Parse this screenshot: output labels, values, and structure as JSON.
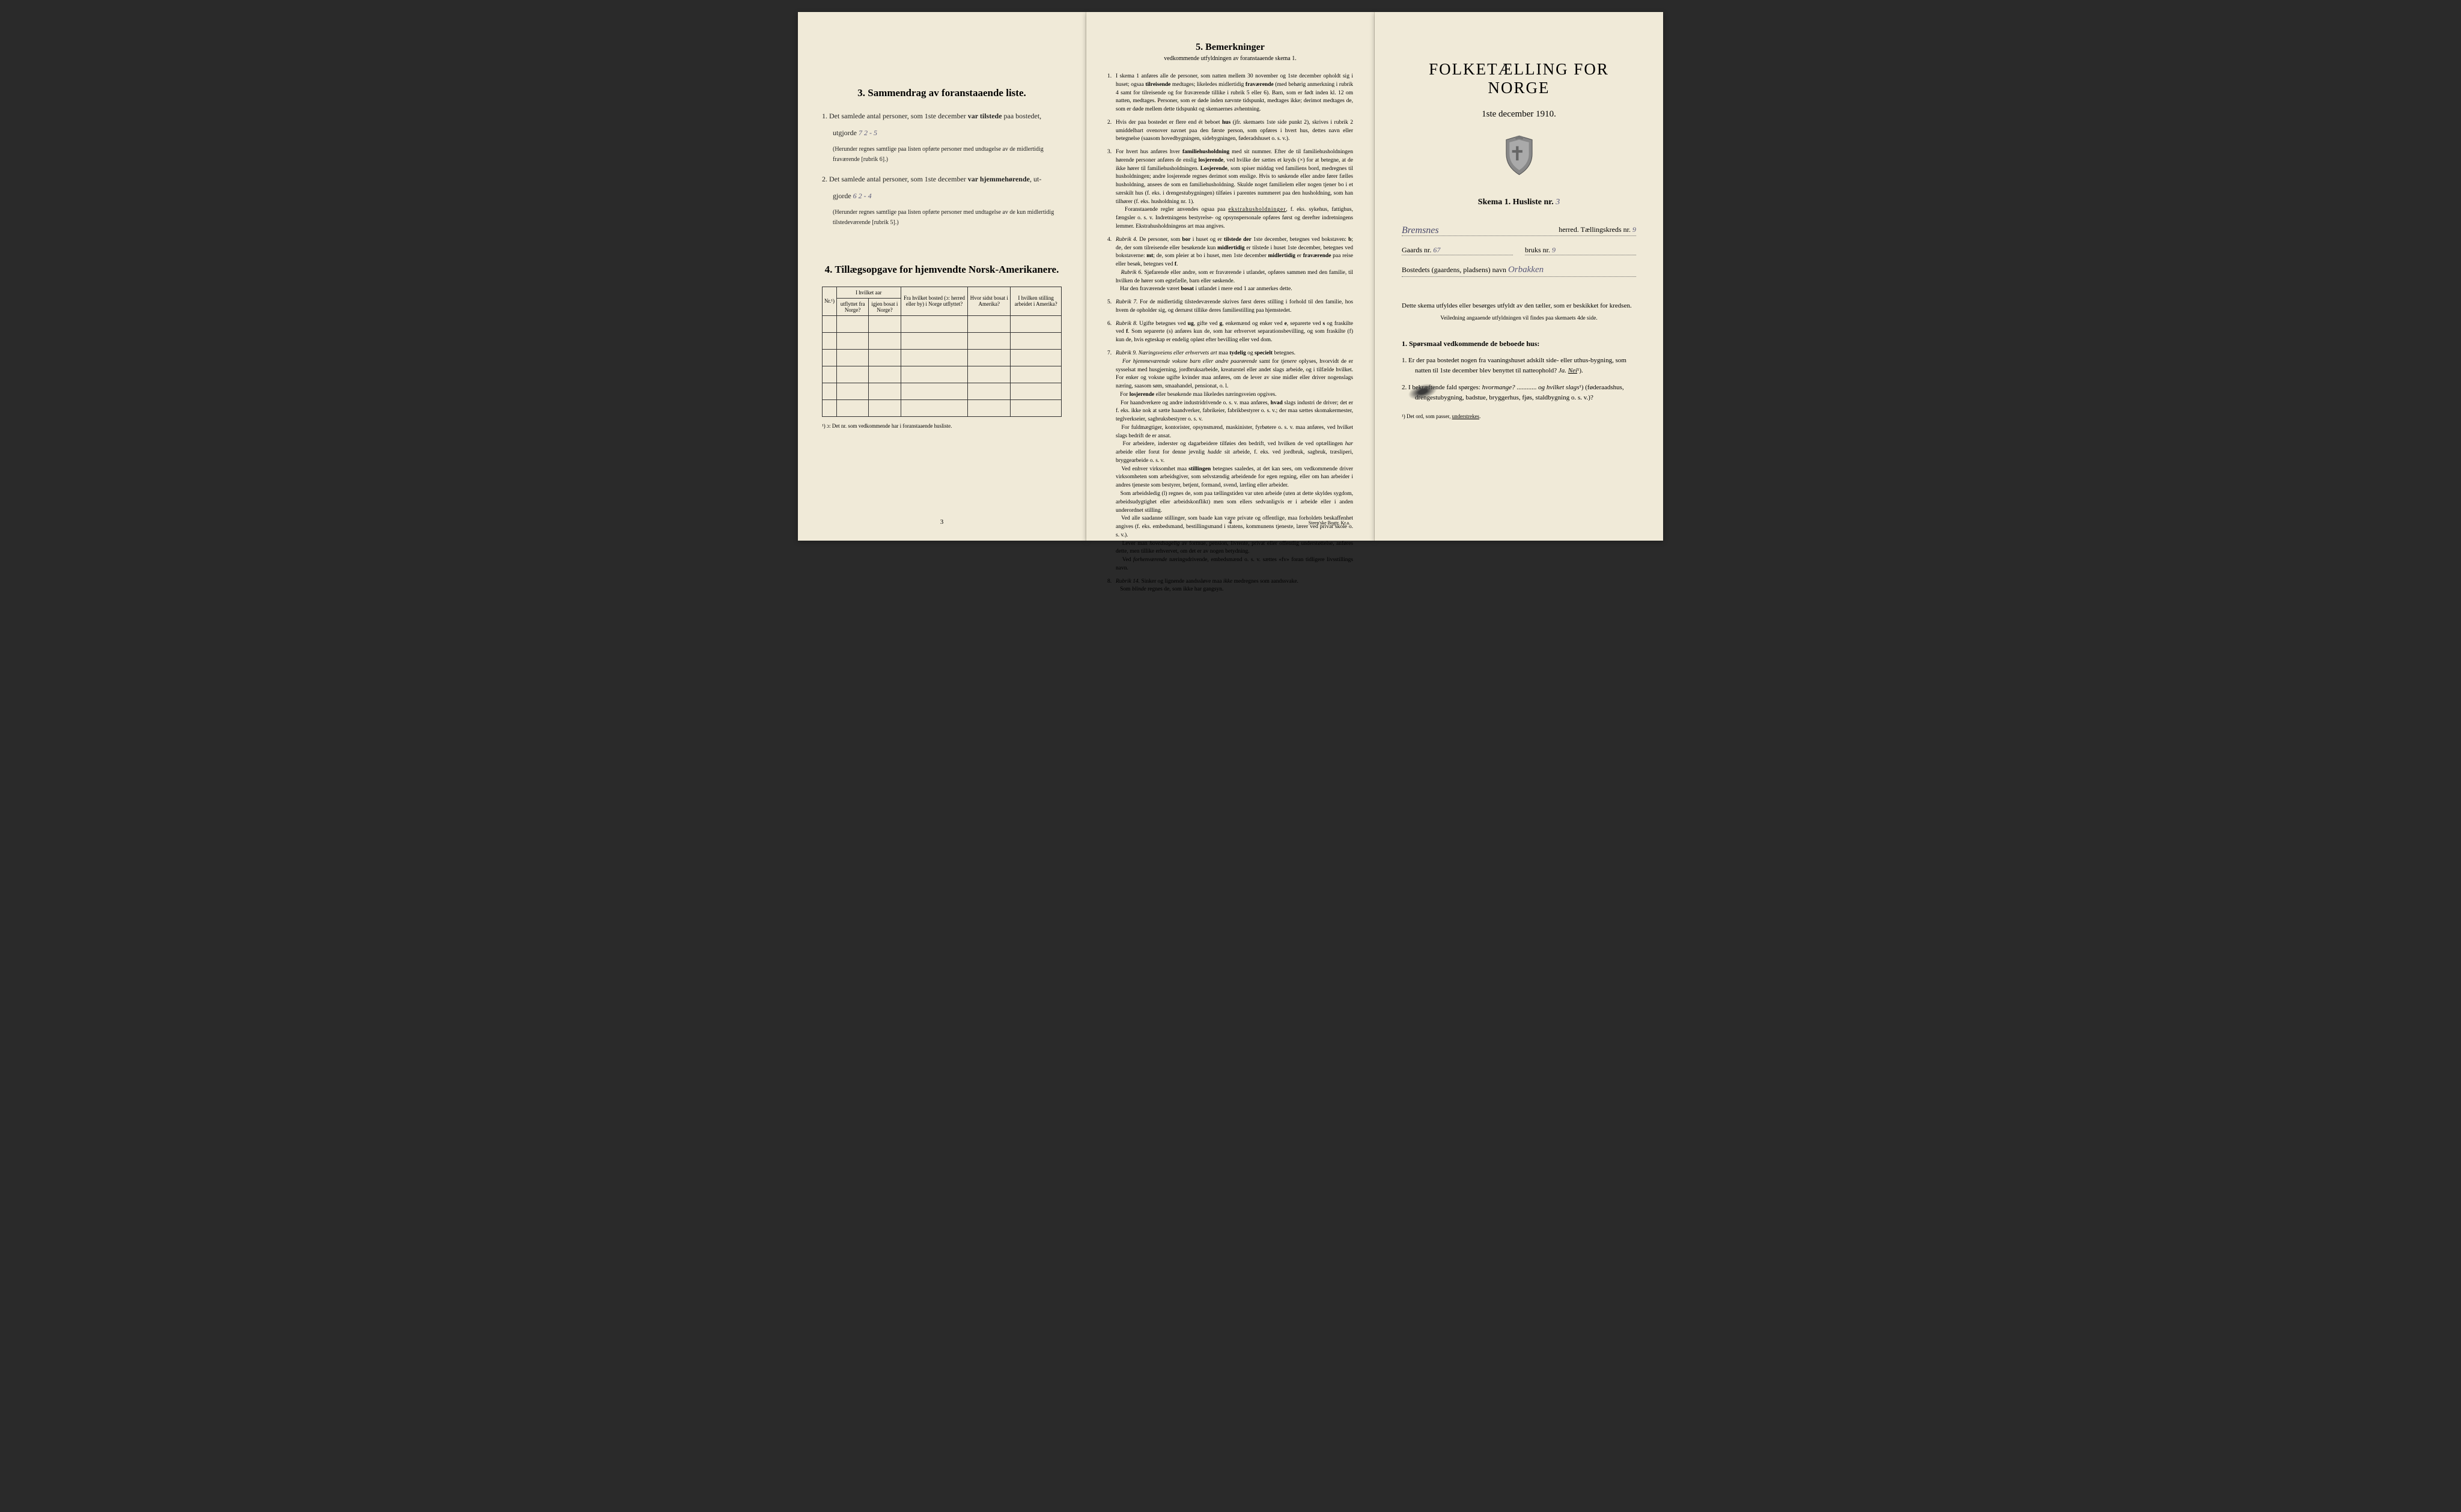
{
  "page1": {
    "section3_title": "3.   Sammendrag av foranstaaende liste.",
    "item1_pre": "1.  Det samlede antal personer, som 1ste december ",
    "item1_bold": "var tilstede",
    "item1_post": " paa bostedet,",
    "item1_line2": "utgjorde",
    "item1_hw": " 7    2 - 5",
    "item1_paren": "(Herunder regnes samtlige paa listen opførte personer med undtagelse av de midlertidig fraværende [rubrik 6].)",
    "item2_pre": "2.  Det samlede antal personer, som 1ste december ",
    "item2_bold": "var hjemmehørende",
    "item2_post": ", ut-",
    "item2_line2": "gjorde",
    "item2_hw": " 6    2 - 4",
    "item2_paren": "(Herunder regnes samtlige paa listen opførte personer med undtagelse av de kun midlertidig tilstedeværende [rubrik 5].)",
    "section4_title": "4.   Tillægsopgave for hjemvendte Norsk-Amerikanere.",
    "th_nr": "Nr.¹)",
    "th_aar": "I hvilket aar",
    "th_utflyttet": "utflyttet fra Norge?",
    "th_igjen": "igjen bosat i Norge?",
    "th_bosted": "Fra hvilket bosted (ɔ: herred eller by) i Norge utflyttet?",
    "th_sidst": "Hvor sidst bosat i Amerika?",
    "th_stilling": "I hvilken stilling arbeidet i Amerika?",
    "footnote": "¹) ɔ: Det nr. som vedkommende har i foranstaaende husliste.",
    "page_num": "3"
  },
  "page2": {
    "title": "5.   Bemerkninger",
    "subtitle": "vedkommende utfyldningen av foranstaaende skema 1.",
    "items": [
      {
        "n": "1.",
        "t": "I skema 1 anføres alle de personer, som natten mellem 30 november og 1ste december opholdt sig i huset; ogsaa <b>tilreisende</b> medtages; likeledes midlertidig <b>fraværende</b> (med behørig anmerkning i rubrik 4 samt for tilreisende og for fraværende tillike i rubrik 5 eller 6). Barn, som er født inden kl. 12 om natten, medtages. Personer, som er døde inden nævnte tidspunkt, medtages ikke; derimot medtages de, som er døde mellem dette tidspunkt og skemaernes avhentning."
      },
      {
        "n": "2.",
        "t": "Hvis der paa bostedet er flere end ét beboet <b>hus</b> (jfr. skemaets 1ste side punkt 2), skrives i rubrik 2 umiddelbart ovenover navnet paa den første person, som opføres i hvert hus, dettes navn eller betegnelse (saasom hovedbygningen, sidebygningen, føderadshuset o. s. v.)."
      },
      {
        "n": "3.",
        "t": "For hvert hus anføres hver <b>familiehusholdning</b> med sit nummer. Efter de til familiehusholdningen hørende personer anføres de enslig <b>losjerende</b>, ved hvilke der sættes et kryds (×) for at betegne, at de ikke hører til familiehusholdningen. <b>Losjerende</b>, som spiser middag ved familiens bord, medregnes til husholdningen; andre losjerende regnes derimot som enslige. Hvis to søskende eller andre fører fælles husholdning, ansees de som en familiehusholdning. Skulde noget familielem eller nogen tjener bo i et særskilt hus (f. eks. i drengestubygningen) tilføies i parentes nummeret paa den husholdning, som han tilhører (f. eks. husholdning nr. 1).<br>&nbsp;&nbsp;&nbsp;Foranstaaende regler anvendes ogsaa paa <span class='underline-old'>ekstrahusholdninger</span>, f. eks. sykehus, fattighus, fængsler o. s. v. Indretningens bestyrelse- og opsynspersonale opføres først og derefter indretningens lemmer. Ekstrahusholdningens art maa angives."
      },
      {
        "n": "4.",
        "t": "<i>Rubrik 4.</i> De personer, som <b>bor</b> i huset og er <b>tilstede der</b> 1ste december, betegnes ved bokstaven: <b>b</b>; de, der som tilreisende eller besøkende kun <b>midlertidig</b> er tilstede i huset 1ste december, betegnes ved bokstaverne: <b>mt</b>; de, som pleier at bo i huset, men 1ste december <b>midlertidig</b> er <b>fraværende</b> paa reise eller besøk, betegnes ved <b>f</b>.<br>&nbsp;&nbsp;&nbsp;<i>Rubrik 6.</i> Sjøfarende eller andre, som er fraværende i utlandet, opføres sammen med den familie, til hvilken de hører som egtefælle, barn eller søskende.<br>&nbsp;&nbsp;&nbsp;Har den fraværende været <b>bosat</b> i utlandet i mere end 1 aar anmerkes dette."
      },
      {
        "n": "5.",
        "t": "<i>Rubrik 7.</i> For de midlertidig tilstedeværende skrives først deres stilling i forhold til den familie, hos hvem de opholder sig, og dernæst tillike deres familiestilling paa hjemstedet."
      },
      {
        "n": "6.",
        "t": "<i>Rubrik 8.</i> Ugifte betegnes ved <b>ug</b>, gifte ved <b>g</b>, enkemænd og enker ved <b>e</b>, separerte ved <b>s</b> og fraskilte ved <b>f</b>. Som separerte (s) anføres kun de, som har erhvervet separationsbevilling, og som fraskilte (f) kun de, hvis egteskap er endelig opløst efter bevilling eller ved dom."
      },
      {
        "n": "7.",
        "t": "<i>Rubrik 9. Næringsveiens eller erhvervets art</i> maa <b>tydelig</b> og <b>specielt</b> betegnes.<br>&nbsp;&nbsp;&nbsp;<i>For hjemmeværende voksne barn eller andre paarørende</i> samt for <i>tjenere</i> oplyses, hvorvidt de er sysselsat med husgjerning, jordbruksarbeide, kreaturstel eller andet slags arbeide, og i tilfælde hvilket. For enker og voksne ugifte kvinder maa anføres, om de lever av sine midler eller driver nogenslags næring, saasom søm, smaahandel, pensionat, o. l.<br>&nbsp;&nbsp;&nbsp;For <b>losjerende</b> eller besøkende maa likeledes næringsveien opgives.<br>&nbsp;&nbsp;&nbsp;For haandverkere og andre industridrivende o. s. v. maa anføres, <b>hvad</b> slags industri de driver; det er f. eks. ikke nok at sætte haandverker, fabrikeier, fabrikbestyrer o. s. v.; der maa sættes skomakermester, teglverkseier, sagbruksbestyrer o. s. v.<br>&nbsp;&nbsp;&nbsp;For fuldmægtiger, kontorister, opsynsmænd, maskinister, fyrbøtere o. s. v. maa anføres, ved hvilket slags bedrift de er ansat.<br>&nbsp;&nbsp;&nbsp;For arbeidere, inderster og dagarbeidere tilføies den bedrift, ved hvilken de ved optællingen <i>har</i> arbeide eller forut for denne jevnlig <i>hadde</i> sit arbeide, f. eks. ved jordbruk, sagbruk, træsliperi, bryggearbeide o. s. v.<br>&nbsp;&nbsp;&nbsp;Ved enhver virksomhet maa <b>stillingen</b> betegnes saaledes, at det kan sees, om vedkommende driver virksomheten som arbeidsgiver, som selvstændig arbeidende for egen regning, eller om han arbeider i andres tjeneste som bestyrer, betjent, formand, svend, lærling eller arbeider.<br>&nbsp;&nbsp;&nbsp;Som arbeidsledig (l) regnes de, som paa tællingstiden var uten arbeide (uten at dette skyldes sygdom, arbeidsudygtighet eller arbeidskonflikt) men som ellers sedvanligvis er i arbeide eller i anden underordnet stilling.<br>&nbsp;&nbsp;&nbsp;Ved alle saadanne stillinger, som baade kan være private og offentlige, maa forholdets beskaffenhet angives (f. eks. embedsmand, bestillingsmand i statens, kommunens tjeneste, lærer ved privat skole o. s. v.).<br>&nbsp;&nbsp;&nbsp;Lever man <i>hovedsagelig</i> av formue, pension, livrente, privat eller offentlig understøttelse, anføres dette, men tillike erhvervet, om det er av nogen betydning.<br>&nbsp;&nbsp;&nbsp;Ved <i>forhenværende</i> næringsdrivende, embedsmænd o. s. v. sættes «fv» foran tidligere livsstillings navn."
      },
      {
        "n": "8.",
        "t": "<i>Rubrik 14.</i> Sinker og lignende aandssløve maa <i>ikke</i> medregnes som aandssvake.<br>&nbsp;&nbsp;&nbsp;Som <i>blinde</i> regnes de, som ikke har gangsyn."
      }
    ],
    "page_num": "4",
    "printer": "Steen'ske Bogtr. Kr.a."
  },
  "page3": {
    "title": "FOLKETÆLLING FOR NORGE",
    "date": "1ste december 1910.",
    "skema_label": "Skema 1.  Husliste nr.",
    "husliste_nr": "3",
    "herred_hw": "Bremsnes",
    "herred_label": "herred.  Tællingskreds nr.",
    "kreds_nr": "9",
    "gaard_label": "Gaards nr.",
    "gaard_nr": "67",
    "bruk_label": "bruks nr.",
    "bruk_nr": "9",
    "bosted_label": "Bostedets (gaardens, pladsens) navn",
    "bosted_hw": "Orbakken",
    "instruction": "Dette skema utfyldes eller besørges utfyldt av den tæller, som er beskikket for kredsen.",
    "instruction_sub": "Veiledning angaaende utfyldningen vil findes paa skemaets 4de side.",
    "q_header": "1. Spørsmaal vedkommende de beboede hus:",
    "q1": "1.   Er der paa bostedet nogen fra vaaningshuset adskilt side- eller uthus-bygning, som natten til 1ste december blev benyttet til natteophold?   <i>Ja.   <u>Nei</u></i>¹).",
    "q2": "2.   I bekræftende fald spørges: <i>hvormange?</i> ............ <i>og hvilket slags</i>¹) (føderaadshus, drengestubygning, badstue, bryggerhus, fjøs, staldbygning o. s. v.)?",
    "footnote": "¹) Det ord, som passer, <u>understrekes</u>."
  },
  "colors": {
    "paper": "#f0ead8",
    "text": "#222222",
    "handwritten": "#5a5a7a",
    "border": "#333333"
  }
}
